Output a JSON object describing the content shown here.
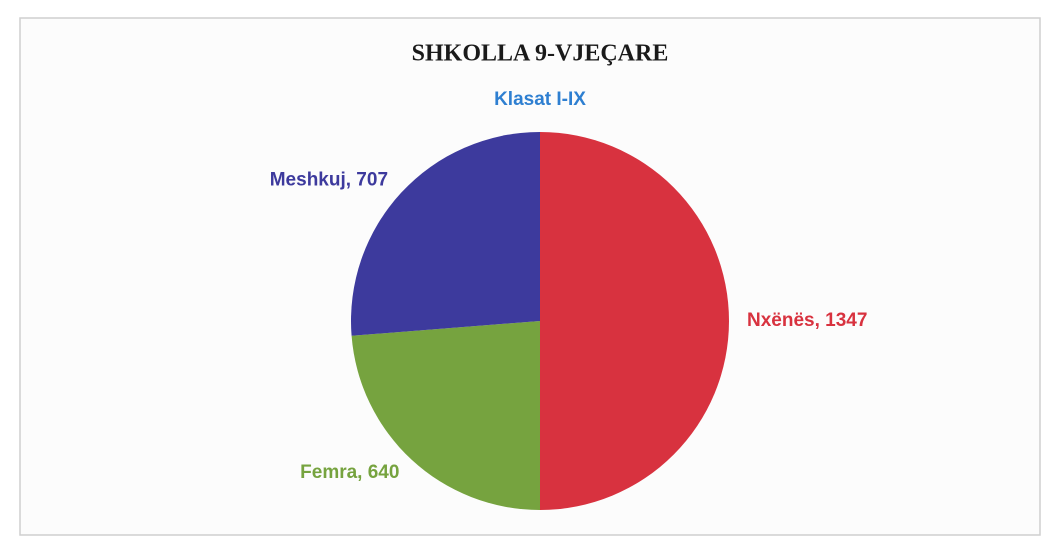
{
  "chart_data": {
    "type": "pie",
    "title": "SHKOLLA 9-VJEÇARE",
    "subtitle": "Klasat I-IX",
    "values": [
      1347,
      640,
      707
    ],
    "value_labels": [
      "Nxënës, 1347",
      "Femra, 640",
      "Meshkuj, 707"
    ],
    "colors": [
      "#d8323f",
      "#76a33f",
      "#3d3a9d"
    ]
  }
}
